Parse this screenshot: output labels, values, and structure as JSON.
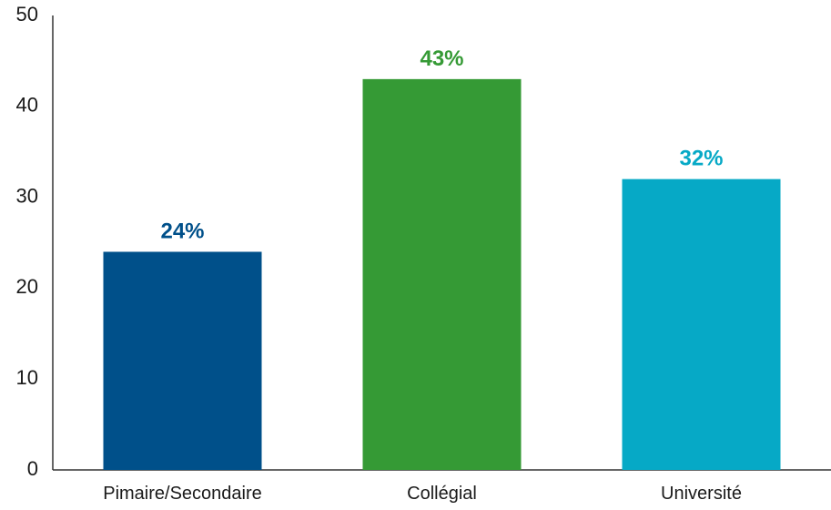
{
  "chart_data": {
    "type": "bar",
    "title": "",
    "xlabel": "",
    "ylabel": "",
    "categories": [
      "Pimaire/Secondaire",
      "Collégial",
      "Université"
    ],
    "values": [
      24,
      43,
      32
    ],
    "data_labels": [
      "24%",
      "43%",
      "32%"
    ],
    "colors": [
      "#00508a",
      "#359a35",
      "#06a9c6"
    ],
    "ylim": [
      0,
      50
    ],
    "yticks": [
      0,
      10,
      20,
      30,
      40,
      50
    ],
    "grid": false,
    "legend": "none"
  }
}
